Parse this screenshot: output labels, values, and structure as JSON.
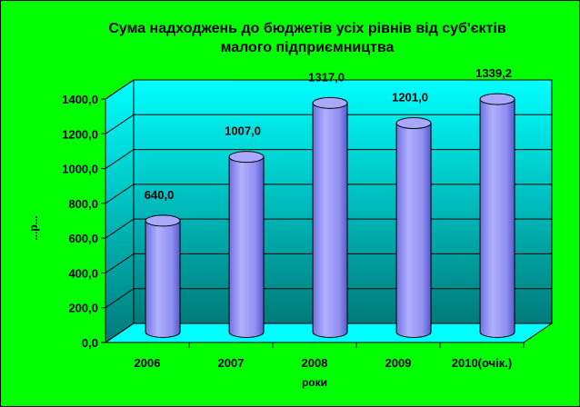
{
  "chart_data": {
    "type": "bar",
    "title_lines": [
      "Сума надходжень до бюджетів усіх рівнів від суб'єктів",
      "малого підприємництва"
    ],
    "categories": [
      "2006",
      "2007",
      "2008",
      "2009",
      "2010(очік.)"
    ],
    "values": [
      640.0,
      1007.0,
      1317.0,
      1201.0,
      1339.2
    ],
    "data_labels": [
      "640,0",
      "1007,0",
      "1317,0",
      "1201,0",
      "1339,2"
    ],
    "xlabel": "роки",
    "ylabel": "...р...",
    "ylim": [
      0,
      1400
    ],
    "y_ticks": [
      0,
      200,
      400,
      600,
      800,
      1000,
      1200,
      1400
    ],
    "y_tick_labels": [
      "0,0",
      "200,0",
      "400,0",
      "600,0",
      "800,0",
      "1000,0",
      "1200,0",
      "1400,0"
    ],
    "grid": true,
    "legend": "none",
    "colors": {
      "page_background": "#000000",
      "chart_area": "#00ff00",
      "wall_top": "#00ffff",
      "wall_bottom": "#008080",
      "floor": "#00ffff",
      "bar_body": "#9999ff",
      "bar_edge": "#000000"
    }
  }
}
